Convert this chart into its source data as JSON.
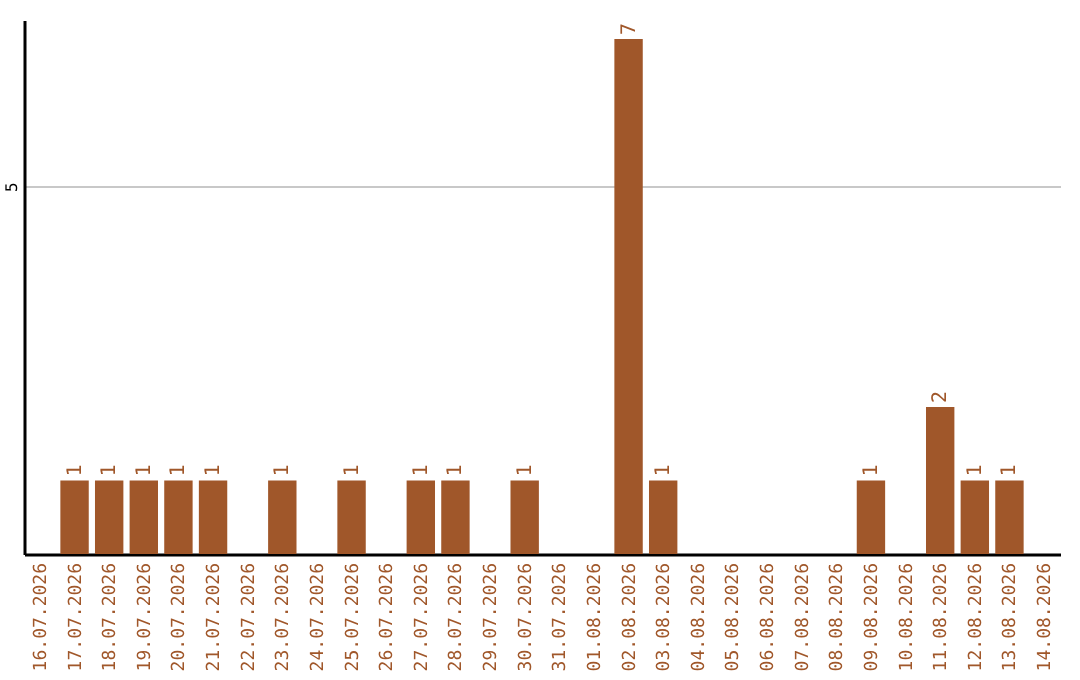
{
  "chart_data": {
    "type": "bar",
    "categories": [
      "16.07.2026",
      "17.07.2026",
      "18.07.2026",
      "19.07.2026",
      "20.07.2026",
      "21.07.2026",
      "22.07.2026",
      "23.07.2026",
      "24.07.2026",
      "25.07.2026",
      "26.07.2026",
      "27.07.2026",
      "28.07.2026",
      "29.07.2026",
      "30.07.2026",
      "31.07.2026",
      "01.08.2026",
      "02.08.2026",
      "03.08.2026",
      "04.08.2026",
      "05.08.2026",
      "06.08.2026",
      "07.08.2026",
      "08.08.2026",
      "09.08.2026",
      "10.08.2026",
      "11.08.2026",
      "12.08.2026",
      "13.08.2026",
      "14.08.2026"
    ],
    "values": [
      null,
      1,
      1,
      1,
      1,
      1,
      null,
      1,
      null,
      1,
      null,
      1,
      1,
      null,
      1,
      null,
      null,
      7,
      1,
      null,
      null,
      null,
      null,
      null,
      1,
      null,
      2,
      1,
      1,
      null
    ],
    "color": "#a0572a",
    "ylim": [
      0,
      7.26
    ],
    "yticks": [
      5
    ],
    "grid": "y",
    "data_labels": true
  }
}
